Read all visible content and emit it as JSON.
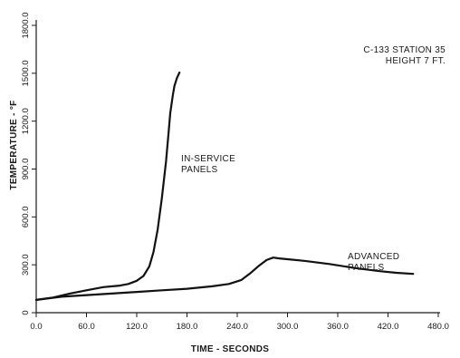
{
  "chart_data": {
    "type": "line",
    "xlabel": "TIME - SECONDS",
    "ylabel": "TEMPERATURE - °F",
    "xlim": [
      0,
      480
    ],
    "ylim": [
      0,
      1800
    ],
    "x_ticks": [
      "0.0",
      "60.0",
      "120.0",
      "180.0",
      "240.0",
      "300.0",
      "360.0",
      "420.0",
      "480.0"
    ],
    "y_ticks": [
      "0",
      "300.0",
      "600.0",
      "900.0",
      "1200.0",
      "1500.0",
      "1800.0"
    ],
    "x_tick_values": [
      0,
      60,
      120,
      180,
      240,
      300,
      360,
      420,
      480
    ],
    "y_tick_values": [
      0,
      300,
      600,
      900,
      1200,
      1500,
      1800
    ],
    "annotations": {
      "header_line1": "C-133 STATION 35",
      "header_line2": "HEIGHT 7 FT."
    },
    "series": [
      {
        "label_lines": [
          "IN-SERVICE",
          "PANELS"
        ],
        "x": [
          0,
          20,
          40,
          60,
          80,
          100,
          110,
          120,
          128,
          135,
          140,
          145,
          150,
          155,
          158,
          160,
          163,
          165,
          168,
          171
        ],
        "y": [
          80,
          95,
          120,
          140,
          160,
          170,
          180,
          200,
          230,
          290,
          380,
          520,
          720,
          950,
          1130,
          1250,
          1360,
          1420,
          1470,
          1505
        ]
      },
      {
        "label_lines": [
          "ADVANCED",
          "PANELS"
        ],
        "x": [
          0,
          30,
          60,
          90,
          120,
          150,
          180,
          210,
          230,
          245,
          255,
          265,
          275,
          283,
          290,
          300,
          320,
          350,
          380,
          410,
          430,
          450
        ],
        "y": [
          80,
          100,
          110,
          120,
          130,
          140,
          150,
          165,
          180,
          205,
          245,
          290,
          330,
          345,
          340,
          335,
          325,
          305,
          280,
          260,
          250,
          243
        ]
      }
    ]
  }
}
